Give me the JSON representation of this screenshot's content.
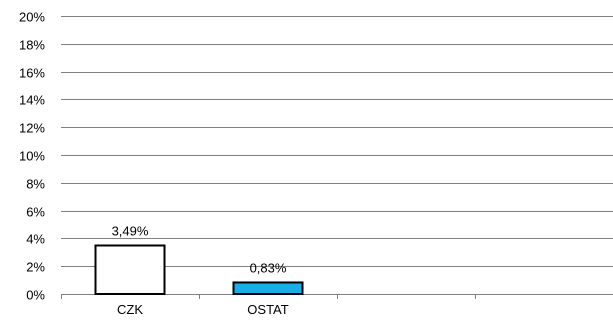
{
  "chart_data": {
    "type": "bar",
    "categories": [
      "CZK",
      "OSTAT",
      "",
      ""
    ],
    "values": [
      3.49,
      0.83,
      null,
      null
    ],
    "value_labels": [
      "3,49%",
      "0,83%",
      "",
      ""
    ],
    "ylim": [
      0,
      20
    ],
    "y_ticks": [
      0,
      2,
      4,
      6,
      8,
      10,
      12,
      14,
      16,
      18,
      20
    ],
    "y_tick_labels": [
      "0%",
      "2%",
      "4%",
      "6%",
      "8%",
      "10%",
      "12%",
      "14%",
      "16%",
      "18%",
      "20%"
    ],
    "grid": true,
    "legend": "none",
    "bar_colors": [
      "#ffffff",
      "#1aaee8"
    ],
    "bar_outline": "#000000",
    "gridline_color": "#808080"
  }
}
